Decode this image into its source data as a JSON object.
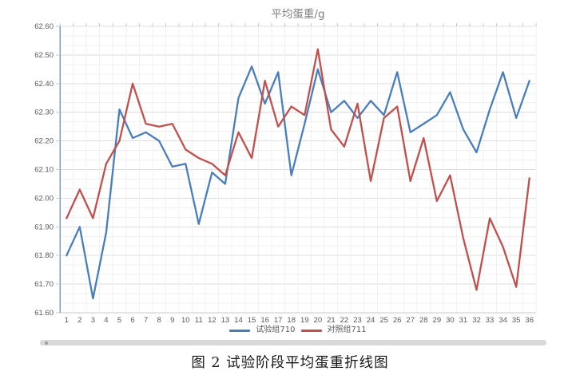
{
  "chart_data": {
    "type": "line",
    "title": "平均蛋重/g",
    "categories": [
      1,
      2,
      3,
      4,
      5,
      6,
      7,
      8,
      9,
      10,
      11,
      12,
      13,
      14,
      15,
      16,
      17,
      18,
      19,
      20,
      21,
      22,
      23,
      24,
      25,
      26,
      27,
      28,
      29,
      30,
      31,
      32,
      33,
      34,
      35,
      36
    ],
    "x_tick_labels": [
      "1",
      "2",
      "3",
      "4",
      "5",
      "6",
      "7",
      "8",
      "9",
      "10",
      "11",
      "12",
      "13",
      "14",
      "15",
      "16",
      "17",
      "18",
      "19",
      "20",
      "21",
      "22",
      "23",
      "24",
      "25",
      "26",
      "27",
      "28",
      "29",
      "30",
      "31",
      "32",
      "33",
      "34",
      "35",
      "36"
    ],
    "series": [
      {
        "name": "试验组710",
        "color": "#4a7ebb",
        "values": [
          61.8,
          61.9,
          61.65,
          61.88,
          62.31,
          62.21,
          62.23,
          62.2,
          62.11,
          62.12,
          61.91,
          62.09,
          62.05,
          62.35,
          62.46,
          62.33,
          62.44,
          62.08,
          62.26,
          62.45,
          62.3,
          62.34,
          62.28,
          62.34,
          62.29,
          62.44,
          62.23,
          62.26,
          62.29,
          62.37,
          62.24,
          62.16,
          62.31,
          62.44,
          62.28,
          62.41
        ]
      },
      {
        "name": "对照组711",
        "color": "#c0504d",
        "values": [
          61.93,
          62.03,
          61.93,
          62.12,
          62.2,
          62.4,
          62.26,
          62.25,
          62.26,
          62.17,
          62.14,
          62.12,
          62.08,
          62.23,
          62.14,
          62.41,
          62.25,
          62.32,
          62.29,
          62.52,
          62.24,
          62.18,
          62.33,
          62.06,
          62.28,
          62.32,
          62.06,
          62.21,
          61.99,
          62.08,
          61.86,
          61.68,
          61.93,
          61.83,
          61.69,
          62.07
        ]
      }
    ],
    "ylim": [
      61.6,
      62.6
    ],
    "ytick_step": 0.1,
    "y_tick_labels": [
      "62.60",
      "62.50",
      "62.40",
      "62.30",
      "62.20",
      "62.10",
      "62.00",
      "61.90",
      "61.80",
      "61.70",
      "61.60"
    ],
    "grid": "light minor horizontal (1/3 of major) and vertical per category, major every 0.10",
    "legend_position": "bottom"
  },
  "colors": {
    "grid_minor": "#f1f1f1",
    "grid_major": "#dcdcdc",
    "axis_line": "#7ba0bf",
    "tick": "#c9c9c9",
    "tick_text": "#595959",
    "title_text": "#7f7f7f",
    "caption_text": "#161616",
    "scrollbar_track": "#d9d9d9"
  },
  "caption": "图 2 试验阶段平均蛋重折线图"
}
